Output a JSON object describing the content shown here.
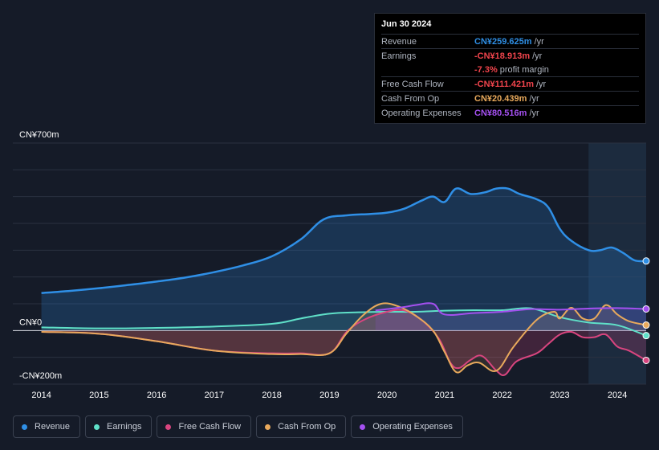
{
  "tooltip": {
    "date": "Jun 30 2024",
    "rows": [
      {
        "label": "Revenue",
        "value": "CN¥259.625m",
        "unit": "/yr",
        "color": "#2f8fe6"
      },
      {
        "label": "Earnings",
        "value": "-CN¥18.913m",
        "unit": "/yr",
        "color": "#f0444c"
      },
      {
        "label": "",
        "value": "-7.3%",
        "unit": "profit margin",
        "color": "#f0444c"
      },
      {
        "label": "Free Cash Flow",
        "value": "-CN¥111.421m",
        "unit": "/yr",
        "color": "#f0444c"
      },
      {
        "label": "Cash From Op",
        "value": "CN¥20.439m",
        "unit": "/yr",
        "color": "#e8a95c"
      },
      {
        "label": "Operating Expenses",
        "value": "CN¥80.516m",
        "unit": "/yr",
        "color": "#a450f0"
      }
    ]
  },
  "legend": [
    {
      "label": "Revenue",
      "color": "#2f8fe6"
    },
    {
      "label": "Earnings",
      "color": "#5fe0c8"
    },
    {
      "label": "Free Cash Flow",
      "color": "#d9457f"
    },
    {
      "label": "Cash From Op",
      "color": "#e8a95c"
    },
    {
      "label": "Operating Expenses",
      "color": "#a450f0"
    }
  ],
  "chart_data": {
    "type": "area",
    "y_unit": "CN¥ m",
    "ylim": [
      -200,
      700
    ],
    "y_tick_labels": [
      {
        "value": 700,
        "label": "CN¥700m"
      },
      {
        "value": 0,
        "label": "CN¥0"
      },
      {
        "value": -200,
        "label": "-CN¥200m"
      }
    ],
    "xlim": [
      2013.95,
      2024.5
    ],
    "x_tick_labels": [
      "2014",
      "2015",
      "2016",
      "2017",
      "2018",
      "2019",
      "2020",
      "2021",
      "2022",
      "2023",
      "2024"
    ],
    "forecast_start": 2023.5,
    "series": [
      {
        "name": "Revenue",
        "color": "#2f8fe6",
        "x": [
          2014,
          2014.5,
          2015,
          2015.5,
          2016,
          2016.5,
          2017,
          2017.5,
          2018,
          2018.5,
          2018.9,
          2019.3,
          2019.7,
          2020,
          2020.3,
          2020.6,
          2020.8,
          2021,
          2021.2,
          2021.45,
          2021.7,
          2021.9,
          2022.1,
          2022.3,
          2022.6,
          2022.8,
          2023,
          2023.2,
          2023.5,
          2023.7,
          2023.9,
          2024.1,
          2024.3,
          2024.5
        ],
        "y": [
          140,
          148,
          158,
          170,
          183,
          198,
          218,
          243,
          277,
          340,
          415,
          430,
          435,
          440,
          455,
          485,
          500,
          480,
          530,
          510,
          516,
          530,
          530,
          510,
          490,
          460,
          380,
          335,
          300,
          300,
          310,
          290,
          262,
          259.6
        ]
      },
      {
        "name": "Earnings",
        "color": "#5fe0c8",
        "x": [
          2014,
          2015,
          2016,
          2017,
          2018,
          2018.5,
          2019,
          2019.5,
          2020,
          2020.5,
          2021,
          2021.5,
          2022,
          2022.5,
          2023,
          2023.5,
          2024,
          2024.5
        ],
        "y": [
          12,
          8,
          10,
          15,
          25,
          45,
          63,
          68,
          70,
          70,
          74,
          76,
          76,
          83,
          50,
          30,
          20,
          -18.9
        ]
      },
      {
        "name": "Free Cash Flow",
        "color": "#d9457f",
        "x": [
          2014,
          2015,
          2016,
          2017,
          2018,
          2018.5,
          2019,
          2019.3,
          2019.6,
          2020,
          2020.3,
          2020.6,
          2020.9,
          2021.1,
          2021.25,
          2021.45,
          2021.65,
          2021.9,
          2022.05,
          2022.25,
          2022.6,
          2022.8,
          2023,
          2023.2,
          2023.4,
          2023.6,
          2023.8,
          2024,
          2024.2,
          2024.5
        ],
        "y": [
          -5,
          -12,
          -40,
          -75,
          -85,
          -85,
          -85,
          -5,
          40,
          70,
          75,
          40,
          -30,
          -120,
          -140,
          -110,
          -95,
          -150,
          -165,
          -115,
          -85,
          -50,
          -15,
          -5,
          -25,
          -25,
          -15,
          -60,
          -75,
          -111.4
        ]
      },
      {
        "name": "Cash From Op",
        "color": "#e8a95c",
        "x": [
          2014,
          2015,
          2016,
          2017,
          2018,
          2018.5,
          2019,
          2019.3,
          2019.6,
          2019.9,
          2020.2,
          2020.5,
          2020.8,
          2021,
          2021.2,
          2021.4,
          2021.6,
          2021.9,
          2022.2,
          2022.6,
          2022.9,
          2023,
          2023.2,
          2023.4,
          2023.6,
          2023.8,
          2024,
          2024.2,
          2024.5
        ],
        "y": [
          -5,
          -12,
          -40,
          -75,
          -88,
          -88,
          -85,
          -10,
          60,
          100,
          90,
          55,
          0,
          -80,
          -155,
          -130,
          -120,
          -150,
          -60,
          40,
          70,
          45,
          85,
          45,
          45,
          95,
          60,
          35,
          20.4
        ]
      },
      {
        "name": "Operating Expenses",
        "color": "#a450f0",
        "x": [
          2019.8,
          2020,
          2020.3,
          2020.5,
          2020.8,
          2021,
          2021.5,
          2022,
          2022.5,
          2023,
          2023.5,
          2024,
          2024.5
        ],
        "y": [
          75,
          80,
          88,
          95,
          100,
          60,
          65,
          70,
          80,
          78,
          82,
          84,
          80.5
        ]
      }
    ]
  }
}
